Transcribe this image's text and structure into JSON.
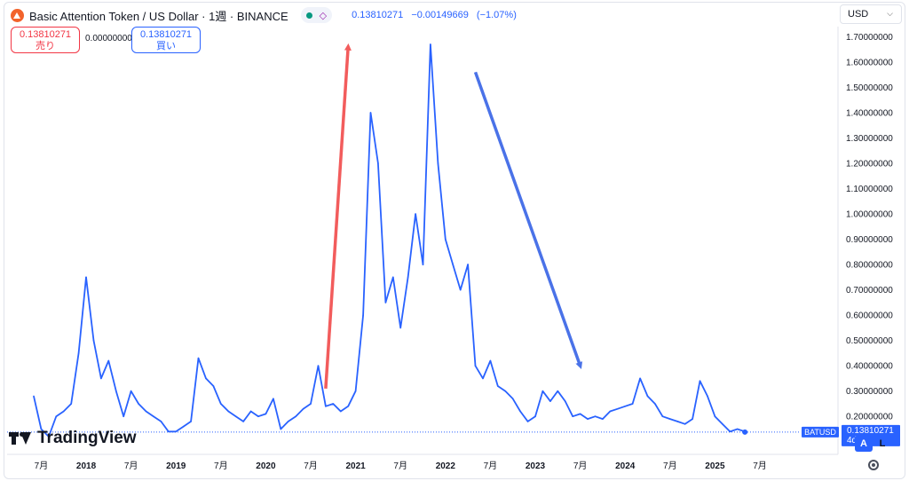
{
  "header": {
    "title": "Basic Attention Token / US Dollar · 1週 · BINANCE",
    "icons": [
      "market-status-dot",
      "share-icon"
    ],
    "last_price": "0.13810271",
    "change": "−0.00149669",
    "change_pct": "(−1.07%)"
  },
  "trade": {
    "sell_price": "0.13810271",
    "sell_label": "売り",
    "spread": "0.00000000",
    "buy_price": "0.13810271",
    "buy_label": "買い"
  },
  "currency": "USD",
  "scale_buttons": {
    "auto": "A",
    "log": "L"
  },
  "brand": "TradingView",
  "colors": {
    "line": "#2962ff",
    "up_arrow": "#f25c5c",
    "down_arrow": "#4a72e8",
    "sell": "#f23645",
    "buy": "#2962ff",
    "axis_text": "#131722",
    "price_line": "#2962ff"
  },
  "chart_data": {
    "type": "line",
    "series": [
      {
        "name": "BATUSD",
        "x": [
          "2017-06",
          "2017-07",
          "2017-08",
          "2017-09",
          "2017-10",
          "2017-11",
          "2017-12",
          "2018-01",
          "2018-02",
          "2018-03",
          "2018-04",
          "2018-05",
          "2018-06",
          "2018-07",
          "2018-08",
          "2018-09",
          "2018-10",
          "2018-11",
          "2018-12",
          "2019-01",
          "2019-02",
          "2019-03",
          "2019-04",
          "2019-05",
          "2019-06",
          "2019-07",
          "2019-08",
          "2019-09",
          "2019-10",
          "2019-11",
          "2019-12",
          "2020-01",
          "2020-02",
          "2020-03",
          "2020-04",
          "2020-05",
          "2020-06",
          "2020-07",
          "2020-08",
          "2020-09",
          "2020-10",
          "2020-11",
          "2020-12",
          "2021-01",
          "2021-02",
          "2021-03",
          "2021-04",
          "2021-05",
          "2021-06",
          "2021-07",
          "2021-08",
          "2021-09",
          "2021-10",
          "2021-11",
          "2021-12",
          "2022-01",
          "2022-02",
          "2022-03",
          "2022-04",
          "2022-05",
          "2022-06",
          "2022-07",
          "2022-08",
          "2022-09",
          "2022-10",
          "2022-11",
          "2022-12",
          "2023-01",
          "2023-02",
          "2023-03",
          "2023-04",
          "2023-05",
          "2023-06",
          "2023-07",
          "2023-08",
          "2023-09",
          "2023-10",
          "2023-11",
          "2023-12",
          "2024-01",
          "2024-02",
          "2024-03",
          "2024-04",
          "2024-05",
          "2024-06",
          "2024-07",
          "2024-08",
          "2024-09",
          "2024-10",
          "2024-11",
          "2024-12",
          "2025-01",
          "2025-02",
          "2025-03",
          "2025-04",
          "2025-05"
        ],
        "values": [
          0.28,
          0.15,
          0.12,
          0.2,
          0.22,
          0.25,
          0.45,
          0.75,
          0.5,
          0.35,
          0.42,
          0.3,
          0.2,
          0.3,
          0.25,
          0.22,
          0.2,
          0.18,
          0.14,
          0.14,
          0.16,
          0.18,
          0.43,
          0.35,
          0.32,
          0.25,
          0.22,
          0.2,
          0.18,
          0.22,
          0.2,
          0.21,
          0.27,
          0.15,
          0.18,
          0.2,
          0.23,
          0.25,
          0.4,
          0.24,
          0.25,
          0.22,
          0.24,
          0.3,
          0.6,
          1.4,
          1.2,
          0.65,
          0.75,
          0.55,
          0.75,
          1.0,
          0.8,
          1.67,
          1.2,
          0.9,
          0.8,
          0.7,
          0.8,
          0.4,
          0.35,
          0.42,
          0.32,
          0.3,
          0.27,
          0.22,
          0.18,
          0.2,
          0.3,
          0.26,
          0.3,
          0.26,
          0.2,
          0.21,
          0.19,
          0.2,
          0.19,
          0.22,
          0.23,
          0.24,
          0.25,
          0.35,
          0.28,
          0.25,
          0.2,
          0.19,
          0.18,
          0.17,
          0.19,
          0.34,
          0.28,
          0.2,
          0.17,
          0.14,
          0.15,
          0.14
        ]
      }
    ],
    "x_tick_labels": [
      "7月",
      "2018",
      "7月",
      "2019",
      "7月",
      "2020",
      "7月",
      "2021",
      "7月",
      "2022",
      "7月",
      "2023",
      "7月",
      "2024",
      "7月",
      "2025",
      "7月"
    ],
    "y_tick_labels": [
      "1.70000000",
      "1.60000000",
      "1.50000000",
      "1.40000000",
      "1.30000000",
      "1.20000000",
      "1.10000000",
      "1.00000000",
      "0.90000000",
      "0.80000000",
      "0.70000000",
      "0.60000000",
      "0.50000000",
      "0.40000000",
      "0.30000000",
      "0.20000000"
    ],
    "ylim": [
      0.05,
      1.74
    ],
    "last_value_label": "BATUSD",
    "last_value": "0.13810271",
    "countdown": "4d 1h",
    "grid": false,
    "annotations": [
      {
        "type": "arrow",
        "direction": "up",
        "color": "#f25c5c",
        "from_date": "2020-09",
        "from_value": 0.31,
        "to_date": "2020-12",
        "to_value": 1.66
      },
      {
        "type": "arrow",
        "direction": "down",
        "color": "#4a72e8",
        "from_date": "2022-05",
        "from_value": 1.56,
        "to_date": "2023-07",
        "to_value": 0.4
      }
    ]
  }
}
